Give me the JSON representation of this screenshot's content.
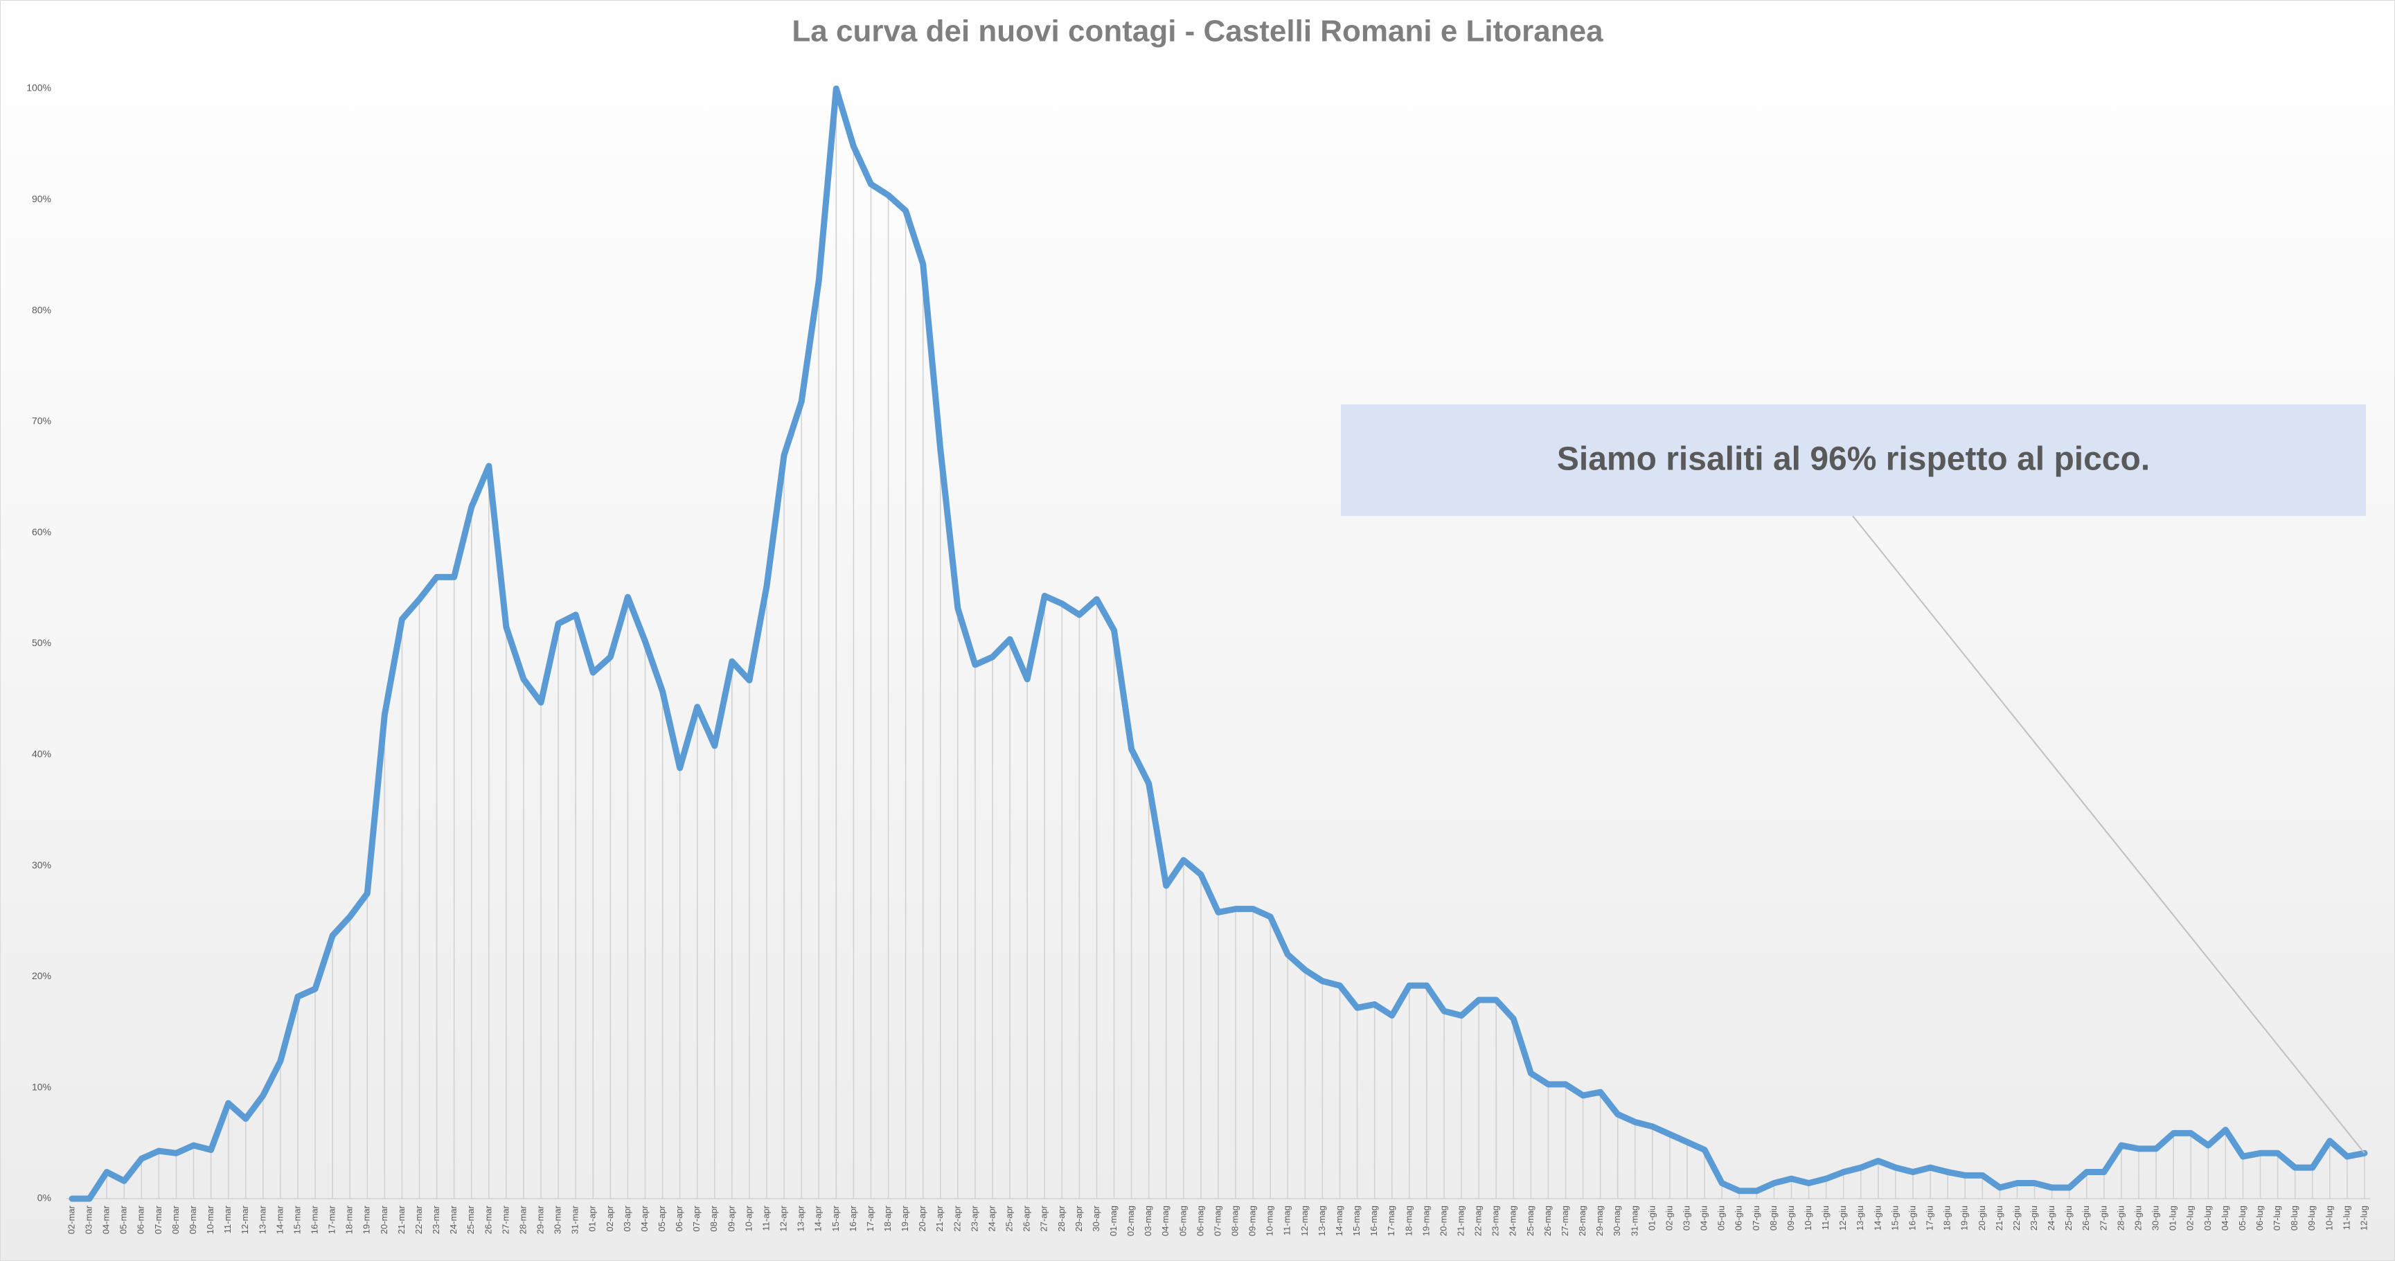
{
  "chart_data": {
    "type": "line",
    "title": "La curva dei nuovi contagi - Castelli Romani e Litoranea",
    "annotation": "Siamo risaliti al 96% rispetto al picco.",
    "categories": [
      "02-mar",
      "03-mar",
      "04-mar",
      "05-mar",
      "06-mar",
      "07-mar",
      "08-mar",
      "09-mar",
      "10-mar",
      "11-mar",
      "12-mar",
      "13-mar",
      "14-mar",
      "15-mar",
      "16-mar",
      "17-mar",
      "18-mar",
      "19-mar",
      "20-mar",
      "21-mar",
      "22-mar",
      "23-mar",
      "24-mar",
      "25-mar",
      "26-mar",
      "27-mar",
      "28-mar",
      "29-mar",
      "30-mar",
      "31-mar",
      "01-apr",
      "02-apr",
      "03-apr",
      "04-apr",
      "05-apr",
      "06-apr",
      "07-apr",
      "08-apr",
      "09-apr",
      "10-apr",
      "11-apr",
      "12-apr",
      "13-apr",
      "14-apr",
      "15-apr",
      "16-apr",
      "17-apr",
      "18-apr",
      "19-apr",
      "20-apr",
      "21-apr",
      "22-apr",
      "23-apr",
      "24-apr",
      "25-apr",
      "26-apr",
      "27-apr",
      "28-apr",
      "29-apr",
      "30-apr",
      "01-mag",
      "02-mag",
      "03-mag",
      "04-mag",
      "05-mag",
      "06-mag",
      "07-mag",
      "08-mag",
      "09-mag",
      "10-mag",
      "11-mag",
      "12-mag",
      "13-mag",
      "14-mag",
      "15-mag",
      "16-mag",
      "17-mag",
      "18-mag",
      "19-mag",
      "20-mag",
      "21-mag",
      "22-mag",
      "23-mag",
      "24-mag",
      "25-mag",
      "26-mag",
      "27-mag",
      "28-mag",
      "29-mag",
      "30-mag",
      "31-mag",
      "01-giu",
      "02-giu",
      "03-giu",
      "04-giu",
      "05-giu",
      "06-giu",
      "07-giu",
      "08-giu",
      "09-giu",
      "10-giu",
      "11-giu",
      "12-giu",
      "13-giu",
      "14-giu",
      "15-giu",
      "16-giu",
      "17-giu",
      "18-giu",
      "19-giu",
      "20-giu",
      "21-giu",
      "22-giu",
      "23-giu",
      "24-giu",
      "25-giu",
      "26-giu",
      "27-giu",
      "28-giu",
      "29-giu",
      "30-giu",
      "01-lug",
      "02-lug",
      "03-lug",
      "04-lug",
      "05-lug",
      "06-lug",
      "07-lug",
      "08-lug",
      "09-lug",
      "10-lug",
      "11-lug",
      "12-lug"
    ],
    "series": [
      {
        "color": "#5b9bd5",
        "values": [
          0,
          0,
          2.4,
          1.6,
          3.6,
          4.3,
          4.1,
          4.8,
          4.4,
          8.6,
          7.2,
          9.3,
          12.4,
          18.2,
          18.9,
          23.7,
          25.4,
          27.5,
          43.6,
          52.2,
          54,
          56,
          56,
          62.3,
          66,
          51.5,
          46.8,
          44.7,
          51.8,
          52.6,
          47.4,
          48.8,
          54.2,
          50.2,
          45.7,
          38.8,
          44.3,
          40.8,
          48.4,
          46.7,
          55.2,
          67,
          71.8,
          82.7,
          100,
          94.8,
          91.4,
          90.4,
          89,
          84.2,
          67.5,
          53.2,
          48.1,
          48.8,
          50.4,
          46.8,
          54.3,
          53.6,
          52.6,
          54,
          51.2,
          40.5,
          37.4,
          28.2,
          30.5,
          29.2,
          25.8,
          26.1,
          26.1,
          25.4,
          22,
          20.6,
          19.6,
          19.2,
          17.2,
          17.5,
          16.5,
          19.2,
          19.2,
          16.9,
          16.5,
          17.9,
          17.9,
          16.2,
          11.3,
          10.3,
          10.3,
          9.3,
          9.6,
          7.6,
          6.9,
          6.5,
          5.8,
          5.1,
          4.4,
          1.4,
          0.7,
          0.7,
          1.4,
          1.8,
          1.4,
          1.8,
          2.4,
          2.8,
          3.4,
          2.8,
          2.4,
          2.8,
          2.4,
          2.1,
          2.1,
          1.0,
          1.4,
          1.4,
          1.0,
          1.0,
          2.4,
          2.4,
          4.8,
          4.5,
          4.5,
          5.9,
          5.9,
          4.8,
          6.2,
          3.8,
          4.1,
          4.1,
          2.8,
          2.8,
          5.2,
          3.8,
          4.1
        ]
      }
    ],
    "ylim": [
      0,
      100
    ],
    "yticks": [
      {
        "value": 0,
        "label": "0%"
      },
      {
        "value": 10,
        "label": "10%"
      },
      {
        "value": 20,
        "label": "20%"
      },
      {
        "value": 30,
        "label": "30%"
      },
      {
        "value": 40,
        "label": "40%"
      },
      {
        "value": 50,
        "label": "50%"
      },
      {
        "value": 60,
        "label": "60%"
      },
      {
        "value": 70,
        "label": "70%"
      },
      {
        "value": 80,
        "label": "80%"
      },
      {
        "value": 90,
        "label": "90%"
      },
      {
        "value": 100,
        "label": "100%"
      }
    ],
    "drop_lines": true
  }
}
